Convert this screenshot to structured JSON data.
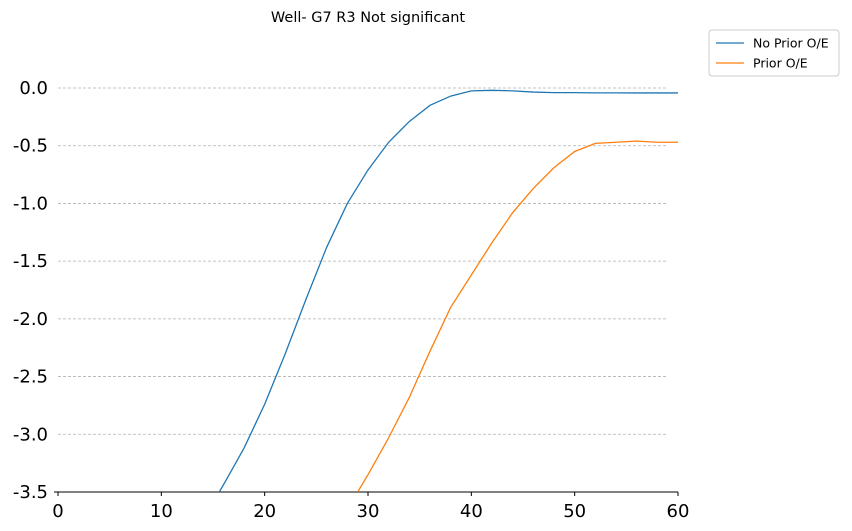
{
  "chart_data": {
    "type": "line",
    "title": "Well- G7    R3     Not significant",
    "xlim": [
      0,
      60
    ],
    "ylim": [
      -3.5,
      0.3
    ],
    "x_ticks": [
      0,
      10,
      20,
      30,
      40,
      50,
      60
    ],
    "y_ticks": [
      0.0,
      -0.5,
      -1.0,
      -1.5,
      -2.0,
      -2.5,
      -3.0,
      -3.5
    ],
    "x_tick_labels": [
      "0",
      "10",
      "20",
      "30",
      "40",
      "50",
      "60"
    ],
    "y_tick_labels": [
      "0.0",
      "-0.5",
      "-1.0",
      "-1.5",
      "-2.0",
      "-2.5",
      "-3.0",
      "-3.5"
    ],
    "grid": "horizontal-dashed",
    "legend_position": "outside-top-right",
    "series": [
      {
        "name": "No Prior O/E",
        "color": "#1f77b4",
        "x": [
          15.6,
          16,
          18,
          20,
          22,
          24,
          26,
          28,
          30,
          32,
          34,
          36,
          38,
          40,
          42,
          44,
          46,
          48,
          50,
          52,
          54,
          56,
          58,
          60
        ],
        "y": [
          -3.5,
          -3.44,
          -3.12,
          -2.74,
          -2.3,
          -1.83,
          -1.38,
          -1.0,
          -0.71,
          -0.47,
          -0.29,
          -0.15,
          -0.07,
          -0.025,
          -0.02,
          -0.025,
          -0.035,
          -0.04,
          -0.04,
          -0.042,
          -0.042,
          -0.043,
          -0.043,
          -0.043
        ]
      },
      {
        "name": "Prior O/E",
        "color": "#ff7f0e",
        "x": [
          29.0,
          30,
          32,
          34,
          36,
          38,
          40,
          42,
          44,
          46,
          48,
          50,
          52,
          54,
          56,
          58,
          60
        ],
        "y": [
          -3.5,
          -3.35,
          -3.03,
          -2.68,
          -2.28,
          -1.9,
          -1.62,
          -1.34,
          -1.08,
          -0.87,
          -0.69,
          -0.55,
          -0.48,
          -0.47,
          -0.46,
          -0.47,
          -0.47
        ]
      }
    ]
  }
}
